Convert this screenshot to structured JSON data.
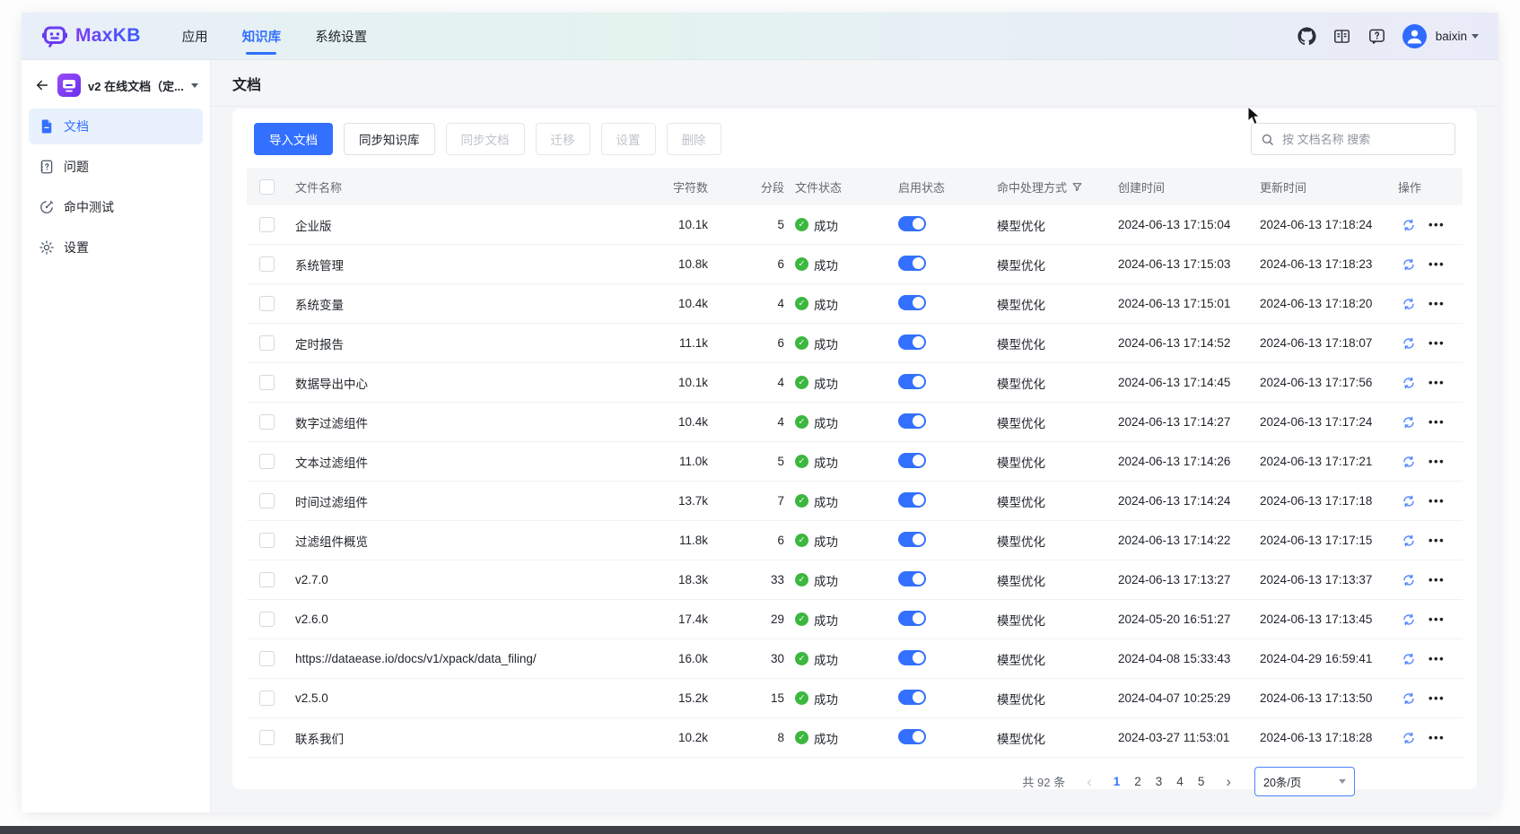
{
  "colors": {
    "primary": "#3370ff",
    "success_green": "#3cb73f",
    "sidebar_active_bg": "#e8f1fd",
    "navbar_gradient": [
      "#e8eff9",
      "#e3f3ee",
      "#eaebf8"
    ]
  },
  "navbar": {
    "logo_text": "MaxKB",
    "items": [
      {
        "label": "应用",
        "active": false
      },
      {
        "label": "知识库",
        "active": true
      },
      {
        "label": "系统设置",
        "active": false
      }
    ],
    "icons": [
      "github-icon",
      "docs-icon",
      "help-icon"
    ],
    "user_name": "baixin"
  },
  "sidebar": {
    "kb_selector": {
      "label": "v2 在线文档（定..."
    },
    "items": [
      {
        "label": "文档",
        "icon": "document-icon",
        "active": true
      },
      {
        "label": "问题",
        "icon": "question-icon",
        "active": false
      },
      {
        "label": "命中测试",
        "icon": "hit-test-icon",
        "active": false
      },
      {
        "label": "设置",
        "icon": "gear-icon",
        "active": false
      }
    ]
  },
  "main": {
    "page_title": "文档",
    "toolbar": {
      "buttons": [
        {
          "label": "导入文档",
          "type": "primary",
          "enabled": true
        },
        {
          "label": "同步知识库",
          "type": "default",
          "enabled": true
        },
        {
          "label": "同步文档",
          "type": "default",
          "enabled": false
        },
        {
          "label": "迁移",
          "type": "default",
          "enabled": false
        },
        {
          "label": "设置",
          "type": "default",
          "enabled": false
        },
        {
          "label": "删除",
          "type": "default",
          "enabled": false
        }
      ],
      "search_placeholder": "按 文档名称 搜索"
    },
    "table": {
      "columns": [
        "文件名称",
        "字符数",
        "分段",
        "文件状态",
        "启用状态",
        "命中处理方式",
        "创建时间",
        "更新时间",
        "操作"
      ],
      "rows": [
        {
          "name": "企业版",
          "chars": "10.1k",
          "segments": "5",
          "status": "成功",
          "enabled": true,
          "hit_method": "模型优化",
          "created": "2024-06-13 17:15:04",
          "updated": "2024-06-13 17:18:24"
        },
        {
          "name": "系统管理",
          "chars": "10.8k",
          "segments": "6",
          "status": "成功",
          "enabled": true,
          "hit_method": "模型优化",
          "created": "2024-06-13 17:15:03",
          "updated": "2024-06-13 17:18:23"
        },
        {
          "name": "系统变量",
          "chars": "10.4k",
          "segments": "4",
          "status": "成功",
          "enabled": true,
          "hit_method": "模型优化",
          "created": "2024-06-13 17:15:01",
          "updated": "2024-06-13 17:18:20"
        },
        {
          "name": "定时报告",
          "chars": "11.1k",
          "segments": "6",
          "status": "成功",
          "enabled": true,
          "hit_method": "模型优化",
          "created": "2024-06-13 17:14:52",
          "updated": "2024-06-13 17:18:07"
        },
        {
          "name": "数据导出中心",
          "chars": "10.1k",
          "segments": "4",
          "status": "成功",
          "enabled": true,
          "hit_method": "模型优化",
          "created": "2024-06-13 17:14:45",
          "updated": "2024-06-13 17:17:56"
        },
        {
          "name": "数字过滤组件",
          "chars": "10.4k",
          "segments": "4",
          "status": "成功",
          "enabled": true,
          "hit_method": "模型优化",
          "created": "2024-06-13 17:14:27",
          "updated": "2024-06-13 17:17:24"
        },
        {
          "name": "文本过滤组件",
          "chars": "11.0k",
          "segments": "5",
          "status": "成功",
          "enabled": true,
          "hit_method": "模型优化",
          "created": "2024-06-13 17:14:26",
          "updated": "2024-06-13 17:17:21"
        },
        {
          "name": "时间过滤组件",
          "chars": "13.7k",
          "segments": "7",
          "status": "成功",
          "enabled": true,
          "hit_method": "模型优化",
          "created": "2024-06-13 17:14:24",
          "updated": "2024-06-13 17:17:18"
        },
        {
          "name": "过滤组件概览",
          "chars": "11.8k",
          "segments": "6",
          "status": "成功",
          "enabled": true,
          "hit_method": "模型优化",
          "created": "2024-06-13 17:14:22",
          "updated": "2024-06-13 17:17:15"
        },
        {
          "name": "v2.7.0",
          "chars": "18.3k",
          "segments": "33",
          "status": "成功",
          "enabled": true,
          "hit_method": "模型优化",
          "created": "2024-06-13 17:13:27",
          "updated": "2024-06-13 17:13:37"
        },
        {
          "name": "v2.6.0",
          "chars": "17.4k",
          "segments": "29",
          "status": "成功",
          "enabled": true,
          "hit_method": "模型优化",
          "created": "2024-05-20 16:51:27",
          "updated": "2024-06-13 17:13:45"
        },
        {
          "name": "https://dataease.io/docs/v1/xpack/data_filing/",
          "chars": "16.0k",
          "segments": "30",
          "status": "成功",
          "enabled": true,
          "hit_method": "模型优化",
          "created": "2024-04-08 15:33:43",
          "updated": "2024-04-29 16:59:41"
        },
        {
          "name": "v2.5.0",
          "chars": "15.2k",
          "segments": "15",
          "status": "成功",
          "enabled": true,
          "hit_method": "模型优化",
          "created": "2024-04-07 10:25:29",
          "updated": "2024-06-13 17:13:50"
        },
        {
          "name": "联系我们",
          "chars": "10.2k",
          "segments": "8",
          "status": "成功",
          "enabled": true,
          "hit_method": "模型优化",
          "created": "2024-03-27 11:53:01",
          "updated": "2024-06-13 17:18:28"
        }
      ]
    },
    "pagination": {
      "total_label": "共 92 条",
      "pages": [
        "1",
        "2",
        "3",
        "4",
        "5"
      ],
      "current_page": "1",
      "page_size_label": "20条/页"
    }
  }
}
